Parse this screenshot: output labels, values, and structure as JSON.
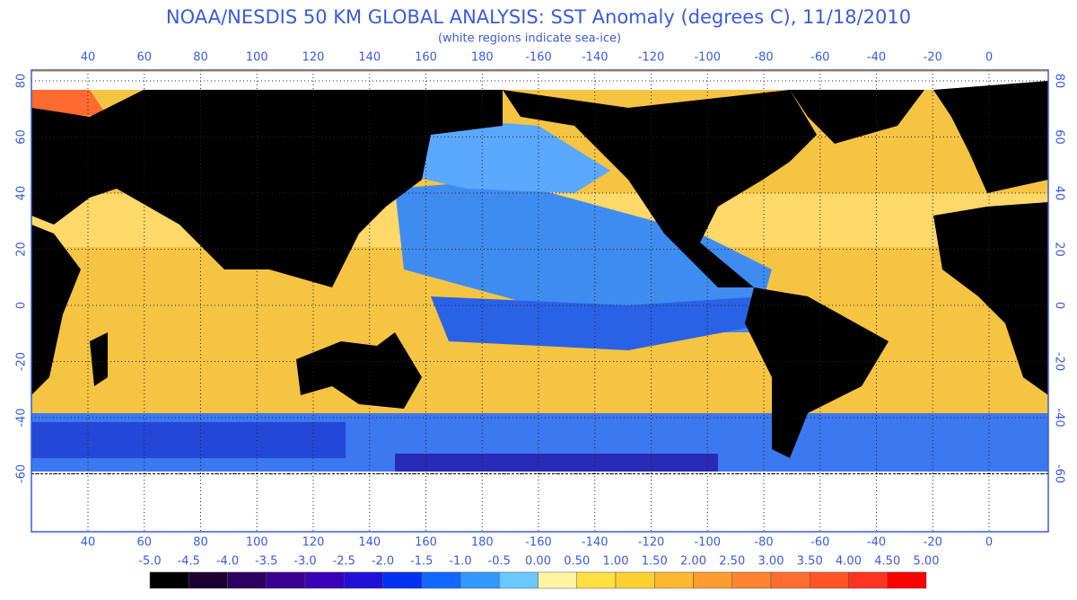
{
  "title": "NOAA/NESDIS 50 KM GLOBAL ANALYSIS: SST Anomaly (degrees C), 11/18/2010",
  "subtitle": "(white regions indicate sea-ice)",
  "longitude_labels": [
    "40",
    "60",
    "80",
    "100",
    "120",
    "140",
    "160",
    "180",
    "-160",
    "-140",
    "-120",
    "-100",
    "-80",
    "-60",
    "-40",
    "-20",
    "0"
  ],
  "latitude_labels": [
    "80",
    "60",
    "40",
    "20",
    "0",
    "-20",
    "-40",
    "-60"
  ],
  "colorbar": {
    "labels": [
      "-5.0",
      "-4.5",
      "-4.0",
      "-3.5",
      "-3.0",
      "-2.5",
      "-2.0",
      "-1.5",
      "-1.0",
      "-0.5",
      "0.00",
      "0.50",
      "1.00",
      "1.50",
      "2.00",
      "2.50",
      "3.00",
      "3.50",
      "4.00",
      "4.50",
      "5.00"
    ],
    "colors": [
      "#000000",
      "#1c0030",
      "#2c0060",
      "#3c0090",
      "#3a00b8",
      "#2010d8",
      "#0030f0",
      "#1068ff",
      "#3098ff",
      "#68c8ff",
      "#fff4a0",
      "#ffe040",
      "#ffd030",
      "#ffb830",
      "#ff9c30",
      "#ff8430",
      "#ff6c30",
      "#ff5424",
      "#ff3420",
      "#ff0000"
    ]
  }
}
